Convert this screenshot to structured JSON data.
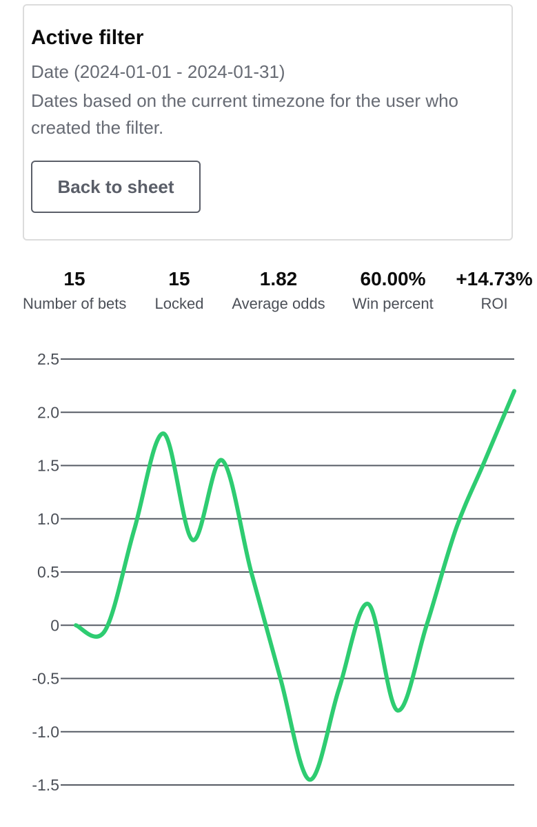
{
  "filter": {
    "title": "Active filter",
    "date_range": "Date (2024-01-01 - 2024-01-31)",
    "note": "Dates based on the current timezone for the user who created the filter.",
    "back_button_label": "Back to sheet"
  },
  "stats": [
    {
      "value": "15",
      "label": "Number of bets"
    },
    {
      "value": "15",
      "label": "Locked"
    },
    {
      "value": "1.82",
      "label": "Average odds"
    },
    {
      "value": "60.00%",
      "label": "Win percent"
    },
    {
      "value": "+14.73%",
      "label": "ROI"
    }
  ],
  "chart_data": {
    "type": "line",
    "title": "",
    "xlabel": "",
    "ylabel": "",
    "ylim": [
      -1.5,
      2.5
    ],
    "y_ticks": [
      "2.5",
      "2.0",
      "1.5",
      "1.0",
      "0.5",
      "0",
      "-0.5",
      "-1.0",
      "-1.5"
    ],
    "grid": true,
    "x": [
      0,
      1,
      2,
      3,
      4,
      5,
      6,
      7,
      8,
      9,
      10,
      11,
      12,
      13,
      14,
      15
    ],
    "series": [
      {
        "values": [
          0,
          -0.05,
          0.9,
          1.8,
          0.8,
          1.55,
          0.5,
          -0.5,
          -1.45,
          -0.6,
          0.2,
          -0.8,
          0,
          0.9,
          1.55,
          2.2
        ],
        "color": "#2ecc71"
      }
    ]
  }
}
